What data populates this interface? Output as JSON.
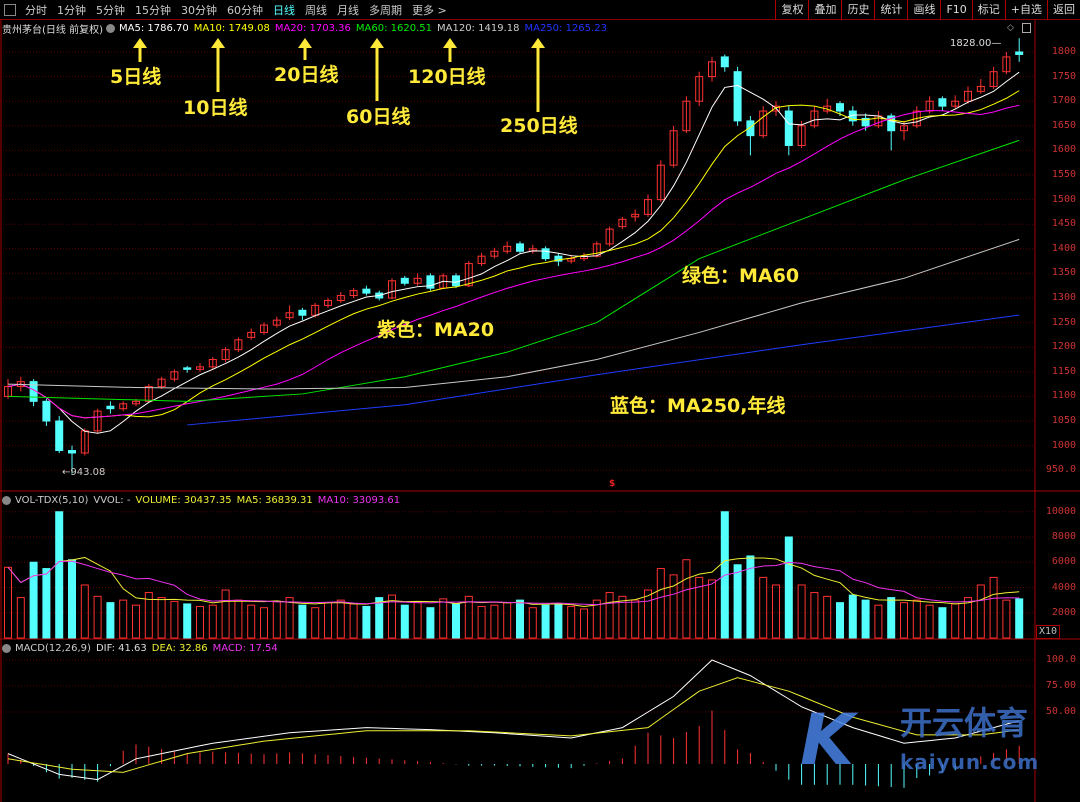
{
  "toolbar": {
    "periods": [
      "分时",
      "1分钟",
      "5分钟",
      "15分钟",
      "30分钟",
      "60分钟",
      "日线",
      "周线",
      "月线",
      "多周期",
      "更多 >"
    ],
    "active": "日线",
    "right_buttons": [
      "复权",
      "叠加",
      "历史",
      "统计",
      "画线",
      "F10",
      "标记",
      "+自选",
      "返回"
    ]
  },
  "main_legend": {
    "title": "贵州茅台(日线 前复权)",
    "ma5": "MA5: 1786.70",
    "ma10": "MA10: 1749.08",
    "ma20": "MA20: 1703.36",
    "ma60": "MA60: 1620.51",
    "ma120": "MA120: 1419.18",
    "ma250": "MA250: 1265.23"
  },
  "vol_legend": {
    "name": "VOL-TDX(5,10)",
    "vvol": "VVOL: -",
    "volume": "VOLUME: 30437.35",
    "ma5": "MA5: 36839.31",
    "ma10": "MA10: 33093.61"
  },
  "macd_legend": {
    "name": "MACD(12,26,9)",
    "dif": "DIF: 41.63",
    "dea": "DEA: 32.86",
    "macd": "MACD: 17.54"
  },
  "annotations": {
    "ma5": "5日线",
    "ma10": "10日线",
    "ma20": "20日线",
    "ma60": "60日线",
    "ma120": "120日线",
    "ma250": "250日线",
    "purple": "紫色：MA20",
    "green": "绿色：MA60",
    "blue": "蓝色：MA250,年线"
  },
  "markers": {
    "min": "943.08",
    "max": "1828.00",
    "dollar": "$"
  },
  "watermark": {
    "cn": "开云体育",
    "url": "kaiyun.com"
  },
  "colors": {
    "up": "#ff3232",
    "down": "#54ffff",
    "ma5": "#ffffff",
    "ma10": "#ffff00",
    "ma20": "#ff00ff",
    "ma60": "#00e600",
    "ma120": "#c8c8c8",
    "ma250": "#1e3cff",
    "grid": "#5a0000"
  },
  "chart_data": [
    {
      "type": "candlestick",
      "title": "贵州茅台(日线 前复权)",
      "yticks": [
        "1800",
        "1750",
        "1700",
        "1650",
        "1600",
        "1550",
        "1500",
        "1450",
        "1400",
        "1350",
        "1300",
        "1250",
        "1200",
        "1150",
        "1100",
        "1050",
        "1000",
        "950.0"
      ],
      "ylim": [
        930,
        1835
      ],
      "ohlc": [
        [
          1100,
          1135,
          1095,
          1120
        ],
        [
          1120,
          1140,
          1110,
          1130
        ],
        [
          1130,
          1135,
          1080,
          1090
        ],
        [
          1090,
          1095,
          1040,
          1050
        ],
        [
          1050,
          1060,
          985,
          990
        ],
        [
          990,
          1000,
          943.08,
          985
        ],
        [
          985,
          1035,
          980,
          1030
        ],
        [
          1030,
          1075,
          1025,
          1070
        ],
        [
          1080,
          1090,
          1065,
          1075
        ],
        [
          1075,
          1090,
          1070,
          1085
        ],
        [
          1085,
          1095,
          1080,
          1090
        ],
        [
          1090,
          1125,
          1088,
          1120
        ],
        [
          1120,
          1140,
          1115,
          1135
        ],
        [
          1135,
          1155,
          1130,
          1150
        ],
        [
          1158,
          1162,
          1148,
          1155
        ],
        [
          1155,
          1168,
          1150,
          1160
        ],
        [
          1160,
          1180,
          1155,
          1175
        ],
        [
          1175,
          1200,
          1170,
          1195
        ],
        [
          1195,
          1220,
          1190,
          1215
        ],
        [
          1220,
          1238,
          1215,
          1230
        ],
        [
          1230,
          1250,
          1225,
          1245
        ],
        [
          1245,
          1262,
          1240,
          1255
        ],
        [
          1260,
          1285,
          1255,
          1270
        ],
        [
          1275,
          1280,
          1255,
          1265
        ],
        [
          1265,
          1290,
          1260,
          1285
        ],
        [
          1285,
          1300,
          1280,
          1295
        ],
        [
          1295,
          1312,
          1290,
          1305
        ],
        [
          1305,
          1320,
          1300,
          1315
        ],
        [
          1318,
          1325,
          1305,
          1310
        ],
        [
          1310,
          1315,
          1295,
          1300
        ],
        [
          1300,
          1340,
          1298,
          1335
        ],
        [
          1340,
          1345,
          1325,
          1330
        ],
        [
          1330,
          1350,
          1325,
          1340
        ],
        [
          1345,
          1350,
          1315,
          1320
        ],
        [
          1320,
          1350,
          1318,
          1345
        ],
        [
          1345,
          1350,
          1320,
          1325
        ],
        [
          1325,
          1375,
          1322,
          1370
        ],
        [
          1370,
          1392,
          1365,
          1385
        ],
        [
          1385,
          1402,
          1380,
          1395
        ],
        [
          1395,
          1415,
          1390,
          1405
        ],
        [
          1410,
          1415,
          1390,
          1395
        ],
        [
          1395,
          1408,
          1390,
          1400
        ],
        [
          1400,
          1405,
          1375,
          1380
        ],
        [
          1385,
          1390,
          1365,
          1375
        ],
        [
          1375,
          1388,
          1370,
          1380
        ],
        [
          1380,
          1392,
          1375,
          1385
        ],
        [
          1385,
          1415,
          1382,
          1410
        ],
        [
          1410,
          1445,
          1405,
          1440
        ],
        [
          1445,
          1465,
          1440,
          1460
        ],
        [
          1465,
          1480,
          1455,
          1470
        ],
        [
          1470,
          1510,
          1465,
          1500
        ],
        [
          1500,
          1580,
          1495,
          1570
        ],
        [
          1570,
          1650,
          1565,
          1640
        ],
        [
          1640,
          1710,
          1635,
          1700
        ],
        [
          1700,
          1760,
          1690,
          1750
        ],
        [
          1750,
          1790,
          1740,
          1780
        ],
        [
          1790,
          1795,
          1760,
          1770
        ],
        [
          1760,
          1770,
          1650,
          1660
        ],
        [
          1660,
          1670,
          1590,
          1630
        ],
        [
          1630,
          1690,
          1625,
          1680
        ],
        [
          1680,
          1700,
          1670,
          1690
        ],
        [
          1680,
          1690,
          1590,
          1610
        ],
        [
          1610,
          1660,
          1605,
          1650
        ],
        [
          1650,
          1690,
          1645,
          1680
        ],
        [
          1680,
          1705,
          1675,
          1690
        ],
        [
          1695,
          1700,
          1670,
          1680
        ],
        [
          1680,
          1690,
          1650,
          1660
        ],
        [
          1665,
          1675,
          1640,
          1650
        ],
        [
          1650,
          1680,
          1645,
          1670
        ],
        [
          1670,
          1675,
          1600,
          1640
        ],
        [
          1640,
          1660,
          1620,
          1650
        ],
        [
          1650,
          1690,
          1645,
          1680
        ],
        [
          1680,
          1710,
          1675,
          1700
        ],
        [
          1705,
          1710,
          1680,
          1690
        ],
        [
          1690,
          1712,
          1685,
          1700
        ],
        [
          1700,
          1730,
          1695,
          1720
        ],
        [
          1720,
          1745,
          1715,
          1730
        ],
        [
          1730,
          1770,
          1725,
          1760
        ],
        [
          1760,
          1800,
          1755,
          1790
        ],
        [
          1800,
          1828,
          1780,
          1795
        ]
      ],
      "ma_sparse": {
        "ma60": [
          [
            0,
            1100
          ],
          [
            14,
            1090
          ],
          [
            23,
            1105
          ],
          [
            31,
            1140
          ],
          [
            39,
            1190
          ],
          [
            46,
            1250
          ],
          [
            54,
            1380
          ],
          [
            62,
            1460
          ],
          [
            70,
            1540
          ],
          [
            79,
            1620.51
          ]
        ],
        "ma120": [
          [
            0,
            1125
          ],
          [
            10,
            1118
          ],
          [
            20,
            1115
          ],
          [
            31,
            1118
          ],
          [
            39,
            1140
          ],
          [
            46,
            1175
          ],
          [
            54,
            1230
          ],
          [
            62,
            1290
          ],
          [
            70,
            1340
          ],
          [
            79,
            1419.18
          ]
        ],
        "ma250": [
          [
            14,
            1042
          ],
          [
            31,
            1083
          ],
          [
            46,
            1144
          ],
          [
            62,
            1205
          ],
          [
            79,
            1265.23
          ]
        ]
      }
    },
    {
      "type": "bar",
      "title": "VOL-TDX(5,10)",
      "yticks": [
        "10000",
        "8000",
        "6000",
        "4000",
        "2000"
      ],
      "unit": "X10",
      "ylim": [
        0,
        10500
      ],
      "values": [
        5600,
        3200,
        6000,
        5500,
        10000,
        6200,
        4200,
        3300,
        2800,
        3000,
        2600,
        3600,
        3200,
        2900,
        2700,
        2500,
        2600,
        3800,
        3000,
        2600,
        2400,
        2900,
        3200,
        2600,
        2400,
        2800,
        3000,
        2700,
        2500,
        3200,
        3400,
        2600,
        2800,
        2400,
        3100,
        2700,
        3300,
        2500,
        2600,
        2800,
        3000,
        2400,
        2600,
        2700,
        2500,
        2300,
        3000,
        3600,
        3300,
        3000,
        3800,
        5500,
        5000,
        6200,
        4800,
        4600,
        10000,
        5800,
        6500,
        4800,
        4200,
        8000,
        4200,
        3600,
        3300,
        2800,
        3400,
        3000,
        2600,
        3200,
        2800,
        3000,
        2600,
        2400,
        2700,
        3200,
        4200,
        4800,
        3000,
        3100
      ]
    },
    {
      "type": "line",
      "title": "MACD(12,26,9)",
      "yticks": [
        "100.0",
        "75.00",
        "50.00"
      ],
      "ylim": [
        -30,
        110
      ],
      "dif": [
        [
          0,
          10
        ],
        [
          4,
          -10
        ],
        [
          7,
          -15
        ],
        [
          10,
          5
        ],
        [
          16,
          20
        ],
        [
          22,
          30
        ],
        [
          28,
          35
        ],
        [
          33,
          33
        ],
        [
          38,
          30
        ],
        [
          44,
          25
        ],
        [
          48,
          35
        ],
        [
          52,
          65
        ],
        [
          55,
          100
        ],
        [
          58,
          85
        ],
        [
          62,
          55
        ],
        [
          66,
          35
        ],
        [
          70,
          20
        ],
        [
          74,
          25
        ],
        [
          79,
          41.63
        ]
      ],
      "dea": [
        [
          0,
          5
        ],
        [
          5,
          -5
        ],
        [
          9,
          -8
        ],
        [
          14,
          10
        ],
        [
          20,
          22
        ],
        [
          28,
          32
        ],
        [
          36,
          32
        ],
        [
          44,
          27
        ],
        [
          50,
          35
        ],
        [
          54,
          70
        ],
        [
          57,
          83
        ],
        [
          61,
          70
        ],
        [
          66,
          45
        ],
        [
          71,
          28
        ],
        [
          76,
          28
        ],
        [
          79,
          32.86
        ]
      ]
    }
  ]
}
